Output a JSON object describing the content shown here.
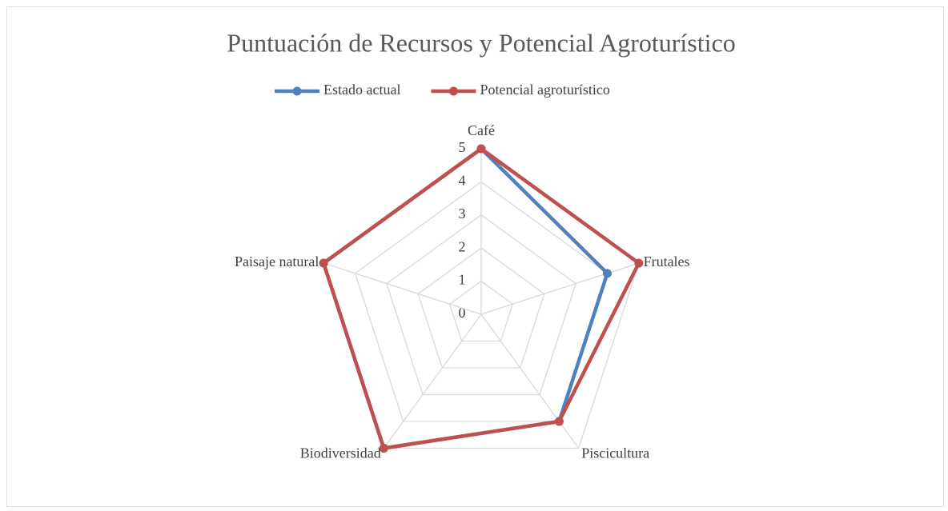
{
  "chart_data": {
    "type": "radar",
    "title": "Puntuación de Recursos y Potencial Agroturístico",
    "categories": [
      "Café",
      "Frutales",
      "Piscicultura",
      "Biodiversidad",
      "Paisaje natural"
    ],
    "series": [
      {
        "name": "Estado actual",
        "color": "#4f81bd",
        "values": [
          5,
          4,
          4,
          5,
          5
        ]
      },
      {
        "name": "Potencial agroturístico",
        "color": "#c0504d",
        "values": [
          5,
          5,
          4,
          5,
          5
        ]
      }
    ],
    "ylim": [
      0,
      5
    ],
    "yticks": [
      0,
      1,
      2,
      3,
      4,
      5
    ],
    "grid": true,
    "legend": "top"
  }
}
